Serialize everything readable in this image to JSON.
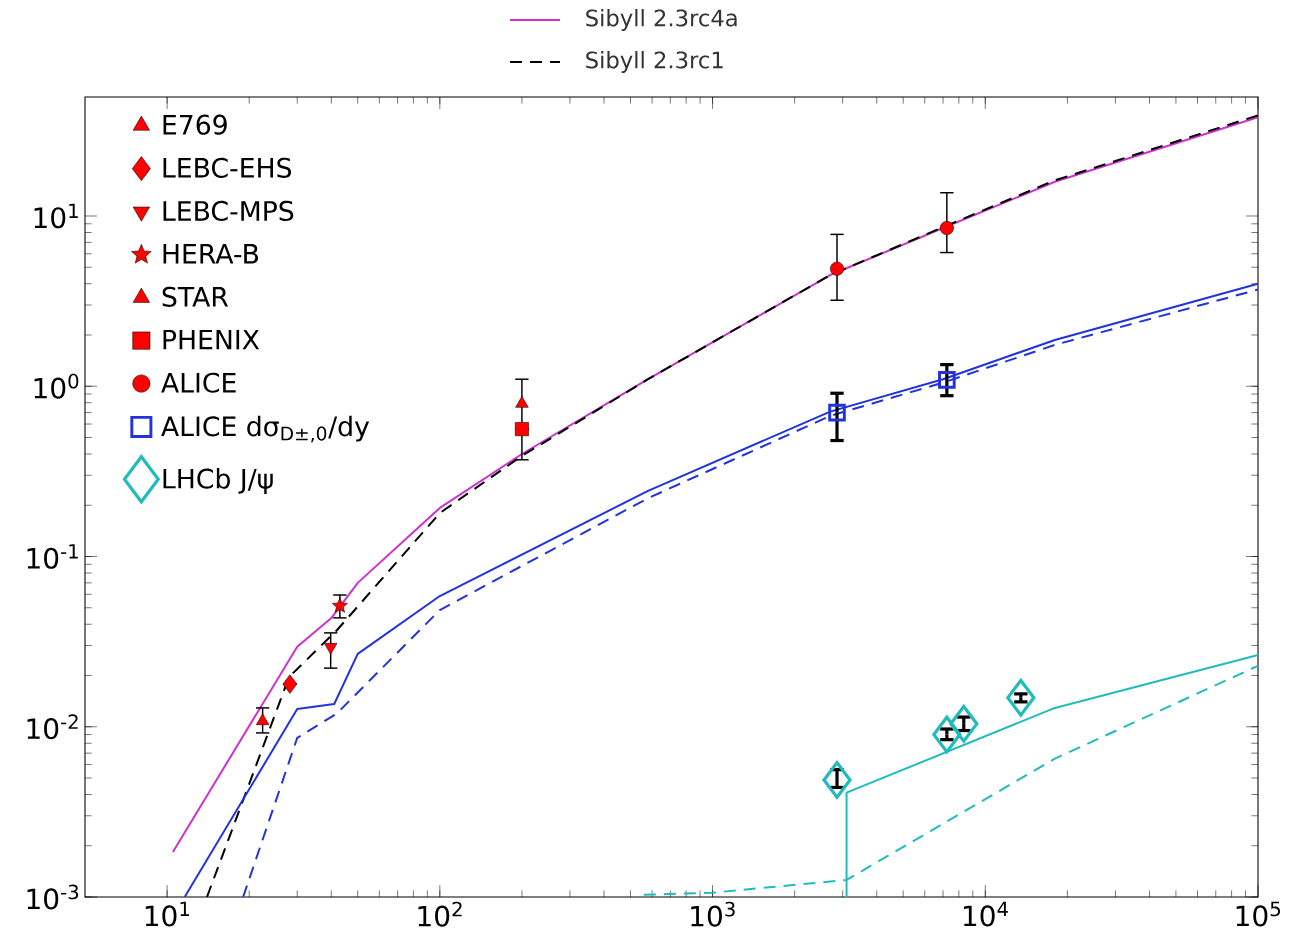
{
  "chart_data": {
    "type": "line",
    "xlim": [
      5,
      100000
    ],
    "ylim": [
      0.001,
      50
    ],
    "log": "xy",
    "legend": "top left",
    "xticks": [
      {
        "value": 10,
        "label": "10$^{1}$"
      },
      {
        "value": 100,
        "label": "10$^{2}$"
      },
      {
        "value": 1000,
        "label": "10$^{3}$"
      },
      {
        "value": 10000,
        "label": "10$^{4}$"
      },
      {
        "value": 100000,
        "label": "10$^{5}$"
      }
    ],
    "yticks": [
      {
        "value": 0.001,
        "label": "10$^{-3}$"
      },
      {
        "value": 0.01,
        "label": "10$^{-2}$"
      },
      {
        "value": 0.1,
        "label": "10$^{-1}$"
      },
      {
        "value": 1,
        "label": "10$^{0}$"
      },
      {
        "value": 10,
        "label": "10$^{1}$"
      }
    ],
    "series": [
      {
        "name": "Sibyll 2.3rc4a",
        "line_style": "solid",
        "color": "#cc33cc",
        "x": [
          10.5,
          30,
          40,
          50,
          100,
          200,
          580,
          2700,
          7000,
          18000,
          100000
        ],
        "values": [
          0.00184,
          0.0295,
          0.0435,
          0.07,
          0.193,
          0.4,
          1.1,
          4.5,
          8.5,
          15.9,
          38
        ]
      },
      {
        "name": "Sibyll 2.3rc1",
        "line_style": "dashed",
        "color": "#000000",
        "x": [
          14,
          28,
          42,
          100,
          200,
          580,
          2700,
          7000,
          18000,
          100000
        ],
        "values": [
          0.001,
          0.0196,
          0.037,
          0.18,
          0.39,
          1.1,
          4.5,
          8.6,
          16.2,
          39
        ]
      },
      {
        "line_style": "solid",
        "color": "#2233dd",
        "x": [
          11.6,
          30,
          41,
          50,
          100,
          580,
          2700,
          7000,
          18000,
          100000
        ],
        "values": [
          0.001,
          0.0127,
          0.0136,
          0.0268,
          0.0586,
          0.243,
          0.71,
          1.1,
          1.87,
          4.0
        ]
      },
      {
        "line_style": "dashed",
        "color": "#2233dd",
        "x": [
          19,
          30,
          42,
          100,
          580,
          2700,
          7000,
          18000,
          100000
        ],
        "values": [
          0.001,
          0.0086,
          0.012,
          0.0485,
          0.22,
          0.67,
          1.05,
          1.75,
          3.7
        ]
      },
      {
        "line_style": "solid",
        "color": "#22bbbb",
        "x": [
          3100,
          3100,
          18000,
          100000
        ],
        "values": [
          0.001,
          0.0041,
          0.0129,
          0.0264
        ]
      },
      {
        "line_style": "dashed",
        "color": "#22bbbb",
        "x": [
          560,
          1000,
          3100,
          18000,
          100000
        ],
        "values": [
          0.00103,
          0.00106,
          0.00126,
          0.0065,
          0.0228
        ]
      },
      {
        "name": "E769",
        "type": "scatter",
        "marker": "triangle",
        "color": "#ff0000",
        "x": [
          22.4
        ],
        "values": [
          0.0108
        ],
        "errors": [
          [
            0.0092,
            0.0129
          ]
        ]
      },
      {
        "name": "LEBC-EHS",
        "type": "scatter",
        "marker": "diamond",
        "color": "#ff0000",
        "x": [
          28.2
        ],
        "values": [
          0.0178
        ],
        "errors": [
          null
        ]
      },
      {
        "name": "LEBC-MPS",
        "type": "scatter",
        "marker": "triangle-down",
        "color": "#ff0000",
        "x": [
          39.8
        ],
        "values": [
          0.0294
        ],
        "errors": [
          [
            0.0221,
            0.0356
          ]
        ]
      },
      {
        "name": "HERA-B",
        "type": "scatter",
        "marker": "star",
        "color": "#ff0000",
        "x": [
          43
        ],
        "values": [
          0.0513
        ],
        "errors": [
          [
            0.0436,
            0.0594
          ]
        ]
      },
      {
        "name": "STAR",
        "type": "scatter",
        "marker": "triangle",
        "color": "#ff0000",
        "x": [
          200
        ],
        "values": [
          0.79
        ],
        "errors": [
          [
            0.37,
            1.1
          ]
        ]
      },
      {
        "name": "PHENIX",
        "type": "scatter",
        "marker": "square",
        "color": "#ff0000",
        "x": [
          200
        ],
        "values": [
          0.56
        ],
        "errors": [
          null
        ]
      },
      {
        "name": "ALICE",
        "type": "scatter",
        "marker": "circle",
        "color": "#ff0000",
        "x": [
          2860,
          7230
        ],
        "values": [
          4.9,
          8.5
        ],
        "errors": [
          [
            3.2,
            7.8
          ],
          [
            6.1,
            13.7
          ]
        ]
      },
      {
        "name": "ALICE dσ$_{D±,0}$/dy",
        "type": "scatter",
        "marker": "square-open",
        "color": "#2233dd",
        "x": [
          2860,
          7230
        ],
        "values": [
          0.7,
          1.09
        ],
        "errors": [
          [
            0.48,
            0.91
          ],
          [
            0.88,
            1.34
          ]
        ]
      },
      {
        "name": "LHCb J/ψ",
        "type": "scatter",
        "marker": "diamond-open",
        "color": "#22bbbb",
        "x": [
          2860,
          7230,
          8340,
          13500
        ],
        "values": [
          0.00487,
          0.009,
          0.0104,
          0.0148
        ],
        "errors": [
          [
            0.0044,
            0.0056
          ],
          [
            0.0084,
            0.0097
          ],
          [
            0.0095,
            0.0114
          ],
          [
            0.014,
            0.0156
          ]
        ]
      }
    ]
  }
}
